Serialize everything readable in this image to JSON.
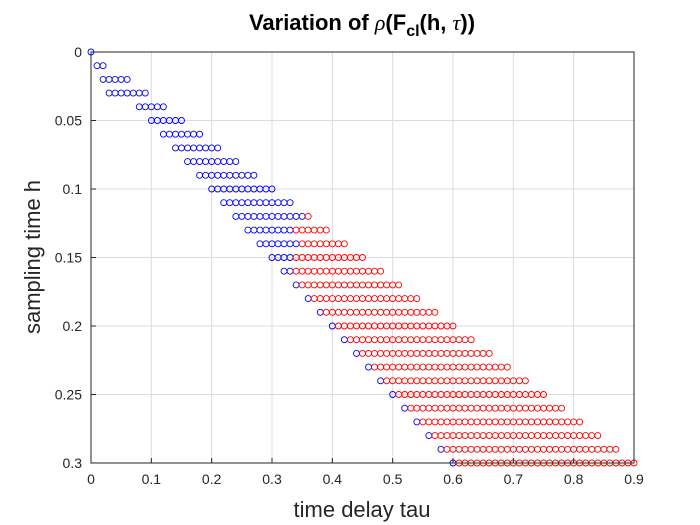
{
  "title": {
    "prefix": "Variation of ",
    "rho": "ρ",
    "open": "(F",
    "subscript": "cl",
    "args": "(h, ",
    "tau": "τ",
    "close": "))"
  },
  "axes": {
    "xlabel": "time delay tau",
    "ylabel": "sampling time h",
    "xlim": [
      0,
      0.9
    ],
    "ylim": [
      0,
      0.3
    ],
    "y_reversed": true,
    "grid": true,
    "xticks": [
      0,
      0.1,
      0.2,
      0.3,
      0.4,
      0.5,
      0.6,
      0.7,
      0.8,
      0.9
    ],
    "xtick_labels": [
      "0",
      "0.1",
      "0.2",
      "0.3",
      "0.4",
      "0.5",
      "0.6",
      "0.7",
      "0.8",
      "0.9"
    ],
    "yticks": [
      0,
      0.05,
      0.1,
      0.15,
      0.2,
      0.25,
      0.3
    ],
    "ytick_labels": [
      "0",
      "0.05",
      "0.1",
      "0.15",
      "0.2",
      "0.25",
      "0.3"
    ]
  },
  "colors": {
    "stable": "#0000ff",
    "unstable": "#ff0000",
    "grid": "#dcdcdc",
    "axis": "#262626"
  },
  "chart_data": {
    "type": "scatter",
    "title": "Variation of ρ(Fcl(h, τ))",
    "xlabel": "time delay tau",
    "ylabel": "sampling time h",
    "xlim": [
      0,
      0.9
    ],
    "ylim": [
      0,
      0.3
    ],
    "marker": "open-circle",
    "h_step": 0.01,
    "tau_step": 0.01,
    "rows": [
      {
        "h": 0.0,
        "tau_from": 0.0,
        "tau_to": 0.0,
        "red_from": null
      },
      {
        "h": 0.01,
        "tau_from": 0.01,
        "tau_to": 0.02,
        "red_from": null
      },
      {
        "h": 0.02,
        "tau_from": 0.02,
        "tau_to": 0.06,
        "red_from": null
      },
      {
        "h": 0.03,
        "tau_from": 0.03,
        "tau_to": 0.09,
        "red_from": null
      },
      {
        "h": 0.04,
        "tau_from": 0.08,
        "tau_to": 0.12,
        "red_from": null
      },
      {
        "h": 0.05,
        "tau_from": 0.1,
        "tau_to": 0.15,
        "red_from": null
      },
      {
        "h": 0.06,
        "tau_from": 0.12,
        "tau_to": 0.18,
        "red_from": null
      },
      {
        "h": 0.07,
        "tau_from": 0.14,
        "tau_to": 0.21,
        "red_from": null
      },
      {
        "h": 0.08,
        "tau_from": 0.16,
        "tau_to": 0.24,
        "red_from": null
      },
      {
        "h": 0.09,
        "tau_from": 0.18,
        "tau_to": 0.27,
        "red_from": null
      },
      {
        "h": 0.1,
        "tau_from": 0.2,
        "tau_to": 0.3,
        "red_from": null
      },
      {
        "h": 0.11,
        "tau_from": 0.22,
        "tau_to": 0.33,
        "red_from": null
      },
      {
        "h": 0.12,
        "tau_from": 0.24,
        "tau_to": 0.36,
        "red_from": 0.36
      },
      {
        "h": 0.13,
        "tau_from": 0.26,
        "tau_to": 0.39,
        "red_from": 0.34
      },
      {
        "h": 0.14,
        "tau_from": 0.28,
        "tau_to": 0.42,
        "red_from": 0.35
      },
      {
        "h": 0.15,
        "tau_from": 0.3,
        "tau_to": 0.45,
        "red_from": 0.34
      },
      {
        "h": 0.16,
        "tau_from": 0.32,
        "tau_to": 0.48,
        "red_from": 0.34
      },
      {
        "h": 0.17,
        "tau_from": 0.34,
        "tau_to": 0.51,
        "red_from": 0.35
      },
      {
        "h": 0.18,
        "tau_from": 0.36,
        "tau_to": 0.54,
        "red_from": 0.37
      },
      {
        "h": 0.19,
        "tau_from": 0.38,
        "tau_to": 0.57,
        "red_from": 0.39
      },
      {
        "h": 0.2,
        "tau_from": 0.4,
        "tau_to": 0.6,
        "red_from": 0.41
      },
      {
        "h": 0.21,
        "tau_from": 0.42,
        "tau_to": 0.63,
        "red_from": 0.43
      },
      {
        "h": 0.22,
        "tau_from": 0.44,
        "tau_to": 0.66,
        "red_from": 0.45
      },
      {
        "h": 0.23,
        "tau_from": 0.46,
        "tau_to": 0.69,
        "red_from": 0.47
      },
      {
        "h": 0.24,
        "tau_from": 0.48,
        "tau_to": 0.72,
        "red_from": 0.49
      },
      {
        "h": 0.25,
        "tau_from": 0.5,
        "tau_to": 0.75,
        "red_from": 0.51
      },
      {
        "h": 0.26,
        "tau_from": 0.52,
        "tau_to": 0.78,
        "red_from": 0.53
      },
      {
        "h": 0.27,
        "tau_from": 0.54,
        "tau_to": 0.81,
        "red_from": 0.55
      },
      {
        "h": 0.28,
        "tau_from": 0.56,
        "tau_to": 0.84,
        "red_from": 0.57
      },
      {
        "h": 0.29,
        "tau_from": 0.58,
        "tau_to": 0.87,
        "red_from": 0.59
      },
      {
        "h": 0.3,
        "tau_from": 0.6,
        "tau_to": 0.9,
        "red_from": 0.61
      }
    ]
  }
}
